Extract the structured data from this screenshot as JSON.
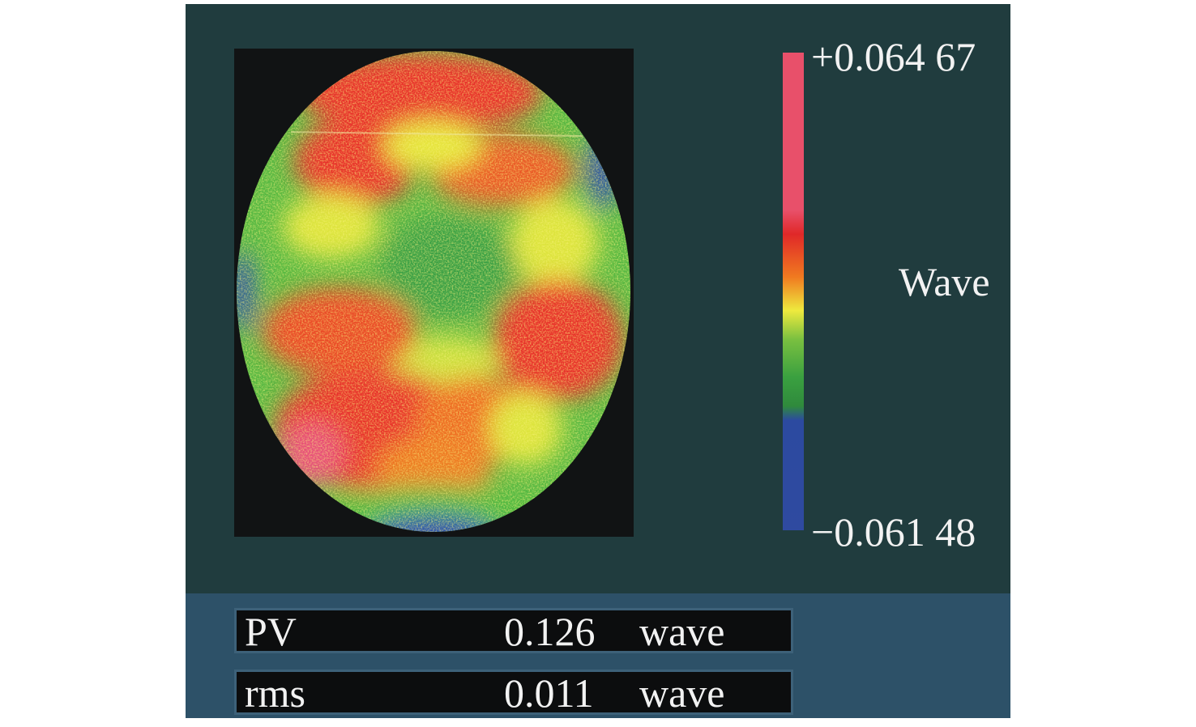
{
  "window": {
    "title": ""
  },
  "colorbar": {
    "max_label": "+0.064 67",
    "min_label": "−0.061 48",
    "unit_label": "Wave",
    "max_value": 0.06467,
    "min_value": -0.06148,
    "stops": [
      "#e8506a",
      "#e8506a",
      "#e02828",
      "#f07a20",
      "#f0e040",
      "#7ac040",
      "#3aa040",
      "#2f8a3c",
      "#2c4aa0",
      "#2f4aa0"
    ]
  },
  "map": {
    "background": "#111314",
    "colors": {
      "red": "#e8332a",
      "orange": "#f07a20",
      "yellow": "#e6e63c",
      "green": "#4fb840",
      "blue": "#2e48b0",
      "pink": "#e8507a"
    }
  },
  "stats": {
    "pv": {
      "label": "PV",
      "value": "0.126",
      "unit": "wave"
    },
    "rms": {
      "label": "rms",
      "value": "0.011",
      "unit": "wave"
    }
  }
}
